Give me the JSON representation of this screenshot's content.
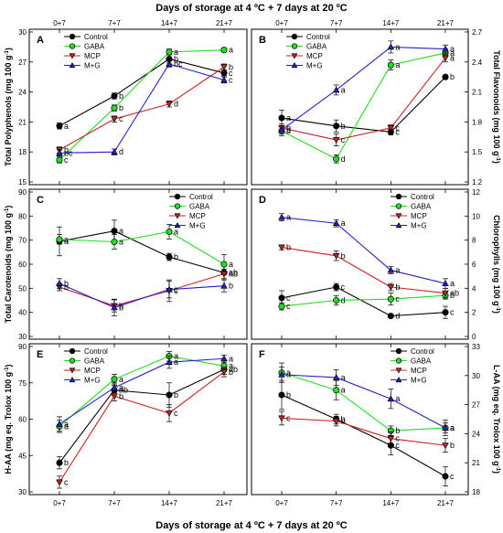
{
  "figure": {
    "top_axis_title": "Days of storage at 4 ºC + 7 days at 20 ºC",
    "bottom_axis_title": "Days of storage at 4 ºC + 7 days at 20 ºC",
    "x_ticks": [
      "0+7",
      "7+7",
      "14+7",
      "21+7"
    ]
  },
  "legend_names": [
    "Control",
    "GABA",
    "MCP",
    "M+G"
  ],
  "series_styles": [
    {
      "color": "#000000",
      "marker": "circle",
      "fill": "#000000"
    },
    {
      "color": "#22dd22",
      "marker": "circle",
      "fill": "#22dd22"
    },
    {
      "color": "#cc2222",
      "marker": "triangle-down",
      "fill": "#cc2222"
    },
    {
      "color": "#2222cc",
      "marker": "triangle-up",
      "fill": "#2222cc"
    }
  ],
  "chart_data": [
    {
      "type": "line",
      "panel": "A",
      "ylabel": "Total Polyphenols (mg 100 g-1)",
      "y_axis_side": "left",
      "ylim": [
        15,
        30
      ],
      "yticks": [
        15,
        18,
        21,
        24,
        27,
        30
      ],
      "categories": [
        "0+7",
        "7+7",
        "14+7",
        "21+7"
      ],
      "legend_position": "top-left",
      "series": [
        {
          "name": "Control",
          "values": [
            20.6,
            23.6,
            27.3,
            25.9
          ],
          "err": [
            0.3,
            0.3,
            0.4,
            0.3
          ],
          "letters": [
            "a",
            "b",
            "b",
            "c"
          ]
        },
        {
          "name": "GABA",
          "values": [
            17.2,
            22.4,
            28.0,
            28.2
          ],
          "err": [
            0.3,
            0.3,
            0.3,
            0.2
          ],
          "letters": [
            "c",
            "b",
            "a",
            "a"
          ]
        },
        {
          "name": "MCP",
          "values": [
            18.2,
            21.3,
            22.8,
            26.5
          ],
          "err": [
            0.3,
            0.3,
            0.3,
            0.3
          ],
          "letters": [
            "b",
            "c",
            "d",
            "b"
          ]
        },
        {
          "name": "M+G",
          "values": [
            17.9,
            18.0,
            26.8,
            25.2
          ],
          "err": [
            0.3,
            0.3,
            0.3,
            0.3
          ],
          "letters": [
            "bc",
            "d",
            "bc",
            "c"
          ]
        }
      ]
    },
    {
      "type": "line",
      "panel": "B",
      "ylabel": "Total Flavonoids (mg 100 g-1)",
      "y_axis_side": "right",
      "ylim": [
        1.2,
        2.7
      ],
      "yticks": [
        1.2,
        1.5,
        1.8,
        2.1,
        2.4,
        2.7
      ],
      "categories": [
        "0+7",
        "7+7",
        "14+7",
        "21+7"
      ],
      "legend_position": "top-left",
      "series": [
        {
          "name": "Control",
          "values": [
            1.84,
            1.76,
            1.7,
            2.25
          ],
          "err": [
            0.08,
            0.06,
            0.03,
            0.02
          ],
          "letters": [
            "a",
            "b",
            "c",
            "b"
          ]
        },
        {
          "name": "GABA",
          "values": [
            1.71,
            1.43,
            2.37,
            2.49
          ],
          "err": [
            0.05,
            0.04,
            0.05,
            0.04
          ],
          "letters": [
            "b",
            "d",
            "a",
            "a"
          ]
        },
        {
          "name": "MCP",
          "values": [
            1.74,
            1.62,
            1.74,
            2.44
          ],
          "err": [
            0.04,
            0.06,
            0.03,
            0.04
          ],
          "letters": [
            "b",
            "c",
            "c",
            "a"
          ]
        },
        {
          "name": "M+G",
          "values": [
            1.72,
            2.12,
            2.55,
            2.53
          ],
          "err": [
            0.04,
            0.05,
            0.06,
            0.04
          ],
          "letters": [
            "b",
            "a",
            "a",
            "a"
          ]
        }
      ]
    },
    {
      "type": "line",
      "panel": "C",
      "ylabel": "Total Carotenoids (mg 100 g-1)",
      "y_axis_side": "left",
      "ylim": [
        30,
        90
      ],
      "yticks": [
        30,
        40,
        50,
        60,
        70,
        80,
        90
      ],
      "categories": [
        "0+7",
        "7+7",
        "14+7",
        "21+7"
      ],
      "legend_position": "top-right",
      "series": [
        {
          "name": "Control",
          "values": [
            69.5,
            73.8,
            63.0,
            56.5
          ],
          "err": [
            6.0,
            4.5,
            1.5,
            3.0
          ],
          "letters": [
            "a",
            "a",
            "b",
            "ab"
          ]
        },
        {
          "name": "GABA",
          "values": [
            70.3,
            69.3,
            73.5,
            60.0
          ],
          "err": [
            2.0,
            3.0,
            3.0,
            4.0
          ],
          "letters": [
            "a",
            "a",
            "a",
            "a"
          ]
        },
        {
          "name": "MCP",
          "values": [
            50.5,
            42.7,
            49.0,
            56.0
          ],
          "err": [
            1.5,
            2.5,
            4.5,
            2.0
          ],
          "letters": [
            "b",
            "b",
            "c",
            "ab"
          ]
        },
        {
          "name": "M+G",
          "values": [
            52.0,
            42.0,
            49.5,
            51.0
          ],
          "err": [
            2.0,
            3.5,
            3.5,
            2.5
          ],
          "letters": [
            "b",
            "b",
            "c",
            "b"
          ]
        }
      ]
    },
    {
      "type": "line",
      "panel": "D",
      "ylabel": "Chlorophylls (mg 100 g-1)",
      "y_axis_side": "right",
      "ylim": [
        0,
        12
      ],
      "yticks": [
        0,
        2,
        4,
        6,
        8,
        10,
        12
      ],
      "categories": [
        "0+7",
        "7+7",
        "14+7",
        "21+7"
      ],
      "legend_position": "top-right",
      "series": [
        {
          "name": "Control",
          "values": [
            3.2,
            4.1,
            1.7,
            2.0
          ],
          "err": [
            0.6,
            0.3,
            0.1,
            0.5
          ],
          "letters": [
            "c",
            "c",
            "d",
            "c"
          ]
        },
        {
          "name": "GABA",
          "values": [
            2.5,
            3.0,
            3.1,
            3.4
          ],
          "err": [
            0.3,
            0.4,
            0.5,
            0.3
          ],
          "letters": [
            "c",
            "d",
            "c",
            "b"
          ]
        },
        {
          "name": "MCP",
          "values": [
            7.4,
            6.7,
            4.1,
            3.6
          ],
          "err": [
            0.2,
            0.4,
            0.3,
            0.4
          ],
          "letters": [
            "b",
            "b",
            "b",
            "ab"
          ]
        },
        {
          "name": "M+G",
          "values": [
            9.9,
            9.4,
            5.5,
            4.4
          ],
          "err": [
            0.3,
            0.3,
            0.3,
            0.4
          ],
          "letters": [
            "a",
            "a",
            "a",
            "a"
          ]
        }
      ]
    },
    {
      "type": "line",
      "panel": "E",
      "ylabel": "H-AA (mg eq. Trolox 100 g-1)",
      "y_axis_side": "left",
      "ylim": [
        30,
        90
      ],
      "yticks": [
        30,
        45,
        60,
        75,
        90
      ],
      "categories": [
        "0+7",
        "7+7",
        "14+7",
        "21+7"
      ],
      "legend_position": "top-left",
      "series": [
        {
          "name": "Control",
          "values": [
            42.0,
            72.0,
            70.0,
            80.5
          ],
          "err": [
            2.5,
            2.0,
            5.0,
            2.0
          ],
          "letters": [
            "b",
            "ab",
            "b",
            "ab"
          ]
        },
        {
          "name": "GABA",
          "values": [
            57.0,
            76.5,
            86.0,
            82.0
          ],
          "err": [
            2.5,
            2.0,
            2.0,
            2.0
          ],
          "letters": [
            "a",
            "a",
            "a",
            "a"
          ]
        },
        {
          "name": "MCP",
          "values": [
            34.0,
            69.5,
            62.5,
            79.5
          ],
          "err": [
            2.5,
            2.0,
            3.5,
            2.0
          ],
          "letters": [
            "c",
            "b",
            "c",
            "b"
          ]
        },
        {
          "name": "M+G",
          "values": [
            58.0,
            73.0,
            83.5,
            85.0
          ],
          "err": [
            3.0,
            2.0,
            2.5,
            1.5
          ],
          "letters": [
            "a",
            "a",
            "a",
            "a"
          ]
        }
      ]
    },
    {
      "type": "line",
      "panel": "F",
      "ylabel": "L-AA (mg eq. Trolox 100 g-1)",
      "y_axis_side": "right",
      "ylim": [
        18,
        33
      ],
      "yticks": [
        18,
        21,
        24,
        27,
        30,
        33
      ],
      "categories": [
        "0+7",
        "7+7",
        "14+7",
        "21+7"
      ],
      "legend_position": "top-right",
      "series": [
        {
          "name": "Control",
          "values": [
            28.0,
            25.5,
            22.8,
            19.6
          ],
          "err": [
            1.5,
            0.5,
            1.0,
            1.0
          ],
          "letters": [
            "b",
            "b",
            "c",
            "c"
          ]
        },
        {
          "name": "GABA",
          "values": [
            30.3,
            28.5,
            24.3,
            24.6
          ],
          "err": [
            1.0,
            1.0,
            0.5,
            0.5
          ],
          "letters": [
            "a",
            "a",
            "b",
            "a"
          ]
        },
        {
          "name": "MCP",
          "values": [
            25.6,
            25.3,
            23.5,
            22.8
          ],
          "err": [
            0.7,
            0.5,
            0.7,
            0.7
          ],
          "letters": [
            "c",
            "b",
            "c",
            "b"
          ]
        },
        {
          "name": "M+G",
          "values": [
            30.1,
            29.8,
            27.6,
            24.6
          ],
          "err": [
            0.8,
            0.8,
            1.0,
            0.8
          ],
          "letters": [
            "a",
            "a",
            "a",
            "a"
          ]
        }
      ]
    }
  ]
}
